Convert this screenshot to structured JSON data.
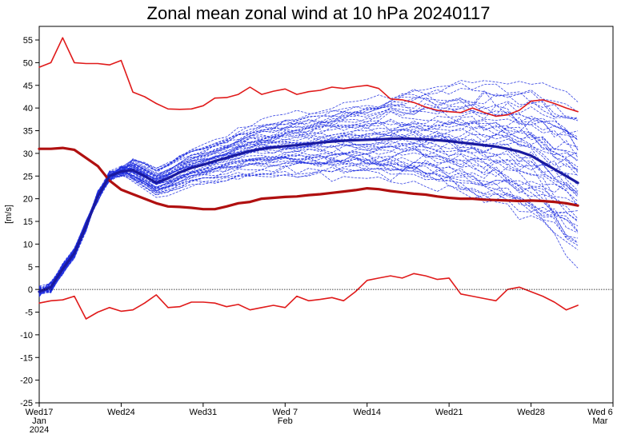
{
  "chart_data": {
    "type": "line",
    "title": "Zonal mean zonal wind at 10 hPa 20240117",
    "ylabel": "[m/s]",
    "xlabel": "",
    "x_unit": "days",
    "xlim": [
      0,
      49
    ],
    "ylim": [
      -25,
      58
    ],
    "yticks": [
      -25,
      -20,
      -15,
      -10,
      -5,
      0,
      5,
      10,
      15,
      20,
      25,
      30,
      35,
      40,
      45,
      50,
      55
    ],
    "xticks": [
      {
        "x": 0,
        "label": "Wed17",
        "sub": "Jan",
        "sub2": "2024"
      },
      {
        "x": 7,
        "label": "Wed24",
        "sub": "",
        "sub2": ""
      },
      {
        "x": 14,
        "label": "Wed31",
        "sub": "",
        "sub2": ""
      },
      {
        "x": 21,
        "label": "Wed 7",
        "sub": "Feb",
        "sub2": ""
      },
      {
        "x": 28,
        "label": "Wed14",
        "sub": "",
        "sub2": ""
      },
      {
        "x": 35,
        "label": "Wed21",
        "sub": "",
        "sub2": ""
      },
      {
        "x": 42,
        "label": "Wed28",
        "sub": "",
        "sub2": ""
      },
      {
        "x": 49,
        "label": "Wed 6",
        "sub": "Mar",
        "sub2": ""
      }
    ],
    "zero_line": true,
    "colors": {
      "ensemble": "#1f2fe0",
      "ensemble_mean": "#1a1aa0",
      "climatology": "#e01a1a",
      "climatology_mean": "#b01010",
      "zero_line": "#000000"
    },
    "series": [
      {
        "id": "clim-max",
        "x": [
          0,
          1,
          2,
          3,
          4,
          5,
          6,
          7,
          8,
          9,
          10,
          11,
          12,
          13,
          14,
          15,
          16,
          17,
          18,
          19,
          20,
          21,
          22,
          23,
          24,
          25,
          26,
          27,
          28,
          29,
          30,
          31,
          32,
          33,
          34,
          35,
          36,
          37,
          38,
          39,
          40,
          41,
          42,
          43,
          44,
          45,
          46
        ],
        "values": [
          49,
          50,
          55.5,
          50,
          49.8,
          49.8,
          49.5,
          50.5,
          43.5,
          42.5,
          41,
          39.8,
          39.7,
          39.8,
          40.5,
          42.2,
          42.3,
          43,
          44.6,
          43,
          43.7,
          44.2,
          43,
          43.6,
          43.9,
          44.6,
          44.3,
          44.7,
          45,
          44.3,
          42,
          41.8,
          41.2,
          40.2,
          39.5,
          39.2,
          39,
          40,
          39,
          38.2,
          38.5,
          39.5,
          41.5,
          41.8,
          41,
          40,
          39.2
        ]
      },
      {
        "id": "clim-mean",
        "x": [
          0,
          1,
          2,
          3,
          4,
          5,
          6,
          7,
          8,
          9,
          10,
          11,
          12,
          13,
          14,
          15,
          16,
          17,
          18,
          19,
          20,
          21,
          22,
          23,
          24,
          25,
          26,
          27,
          28,
          29,
          30,
          31,
          32,
          33,
          34,
          35,
          36,
          37,
          38,
          39,
          40,
          41,
          42,
          43,
          44,
          45,
          46
        ],
        "values": [
          31,
          31,
          31.2,
          30.8,
          29,
          27.2,
          24,
          22,
          21,
          20,
          19,
          18.3,
          18.2,
          18,
          17.7,
          17.7,
          18.3,
          19,
          19.3,
          20,
          20.2,
          20.4,
          20.5,
          20.8,
          21,
          21.3,
          21.6,
          21.9,
          22.3,
          22.1,
          21.7,
          21.4,
          21.1,
          20.9,
          20.5,
          20.2,
          20,
          20,
          19.8,
          19.7,
          19.6,
          19.5,
          19.6,
          19.5,
          19.3,
          19,
          18.5
        ]
      },
      {
        "id": "clim-min",
        "x": [
          0,
          1,
          2,
          3,
          4,
          5,
          6,
          7,
          8,
          9,
          10,
          11,
          12,
          13,
          14,
          15,
          16,
          17,
          18,
          19,
          20,
          21,
          22,
          23,
          24,
          25,
          26,
          27,
          28,
          29,
          30,
          31,
          32,
          33,
          34,
          35,
          36,
          37,
          38,
          39,
          40,
          41,
          42,
          43,
          44,
          45,
          46
        ],
        "values": [
          -3,
          -2.5,
          -2.3,
          -1.5,
          -6.5,
          -5,
          -4,
          -4.8,
          -4.5,
          -3,
          -1.2,
          -4,
          -3.8,
          -2.8,
          -2.8,
          -3,
          -3.8,
          -3.3,
          -4.5,
          -4,
          -3.5,
          -4,
          -1.5,
          -2.5,
          -2.2,
          -1.8,
          -2.5,
          -0.5,
          2,
          2.5,
          3,
          2.5,
          3.5,
          3,
          2.2,
          2.5,
          -1,
          -1.5,
          -2,
          -2.5,
          0,
          0.5,
          -0.5,
          -1.5,
          -2.8,
          -4.5,
          -3.5
        ]
      },
      {
        "id": "ensemble-mean",
        "x": [
          0,
          1,
          2,
          3,
          4,
          5,
          6,
          7,
          8,
          9,
          10,
          11,
          12,
          13,
          14,
          15,
          16,
          17,
          18,
          19,
          20,
          21,
          22,
          23,
          24,
          25,
          26,
          27,
          28,
          29,
          30,
          31,
          32,
          33,
          34,
          35,
          36,
          37,
          38,
          39,
          40,
          41,
          42,
          43,
          44,
          45,
          46
        ],
        "values": [
          -0.5,
          0.5,
          4.5,
          8,
          14,
          20.5,
          25,
          26,
          26.3,
          25,
          23.5,
          24.5,
          25.8,
          26.8,
          27.5,
          28.3,
          29,
          29.8,
          30.5,
          31,
          31.3,
          31.6,
          31.8,
          32.1,
          32.4,
          32.6,
          32.8,
          32.9,
          33,
          33.1,
          33.2,
          33.3,
          33.2,
          33.1,
          32.9,
          32.7,
          32.4,
          32.1,
          31.8,
          31.5,
          31,
          30.4,
          29.5,
          28,
          26.5,
          25,
          23.5
        ]
      }
    ]
  }
}
